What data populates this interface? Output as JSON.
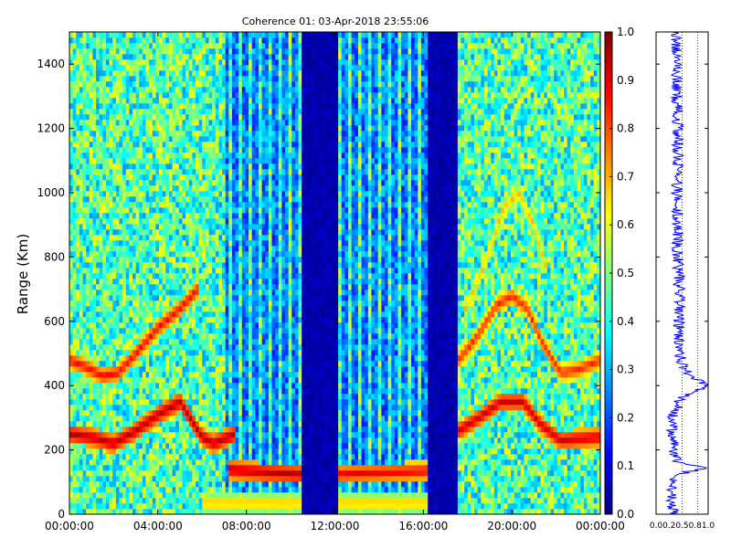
{
  "chart_data": [
    {
      "type": "heatmap",
      "title": "Coherence 01: 03-Apr-2018 23:55:06",
      "xlabel": "",
      "ylabel": "Range (Km)",
      "x_ticks": [
        "00:00:00",
        "04:00:00",
        "08:00:00",
        "12:00:00",
        "16:00:00",
        "20:00:00",
        "00:00:00"
      ],
      "x_range_hours": [
        0,
        24
      ],
      "y_ticks": [
        0,
        200,
        400,
        600,
        800,
        1000,
        1200,
        1400
      ],
      "ylim": [
        0,
        1500
      ],
      "colormap": "jet",
      "clim": [
        0,
        1
      ],
      "colorbar_ticks": [
        "0.0",
        "0.1",
        "0.2",
        "0.3",
        "0.4",
        "0.5",
        "0.6",
        "0.7",
        "0.8",
        "0.9",
        "1.0"
      ],
      "background_level": 0.45,
      "no_data_periods_hours": [
        [
          10.5,
          12.1
        ],
        [
          16.2,
          17.6
        ]
      ],
      "sparse_periods_hours": [
        [
          7.0,
          10.5
        ],
        [
          12.1,
          16.2
        ]
      ],
      "features": [
        {
          "hours": [
            0,
            1,
            2,
            3,
            4,
            5,
            6,
            6.5,
            7.5
          ],
          "range_km": [
            250,
            240,
            220,
            260,
            310,
            350,
            240,
            220,
            250
          ],
          "level": 0.95
        },
        {
          "hours": [
            0,
            0.7,
            1.5,
            2.2,
            3,
            4,
            5,
            5.8
          ],
          "range_km": [
            480,
            460,
            430,
            440,
            500,
            580,
            640,
            700
          ],
          "level": 0.88
        },
        {
          "hours": [
            7.2,
            8,
            9,
            10.5
          ],
          "range_km": [
            140,
            135,
            130,
            125
          ],
          "level": 0.95
        },
        {
          "hours": [
            12.1,
            13,
            14.5,
            16.2
          ],
          "range_km": [
            125,
            128,
            130,
            135
          ],
          "level": 0.9
        },
        {
          "hours": [
            6,
            10.5
          ],
          "range_km": [
            35,
            35
          ],
          "level": 0.72
        },
        {
          "hours": [
            12.1,
            16.2
          ],
          "range_km": [
            35,
            35
          ],
          "level": 0.72
        },
        {
          "hours": [
            17.6,
            18.5,
            19.5,
            20.5,
            21.3,
            22.2,
            23,
            24
          ],
          "range_km": [
            260,
            300,
            350,
            350,
            280,
            230,
            235,
            240
          ],
          "level": 0.93
        },
        {
          "hours": [
            17.6,
            18.5,
            19.3,
            20,
            20.7,
            21.4,
            22.2,
            23,
            24
          ],
          "range_km": [
            480,
            560,
            650,
            680,
            640,
            530,
            440,
            450,
            480
          ],
          "level": 0.85
        },
        {
          "hours": [
            17.8,
            18.8,
            19.6,
            20.3,
            21,
            21.6
          ],
          "range_km": [
            620,
            780,
            950,
            1000,
            900,
            760
          ],
          "level": 0.7
        }
      ]
    },
    {
      "type": "line",
      "title": "",
      "x_ticks": [
        "0.0",
        "0.2",
        "0.5",
        "0.8",
        "1.0"
      ],
      "xlim": [
        0,
        1
      ],
      "ylim": [
        0,
        1500
      ],
      "color": "#0000ff",
      "mean_profile": {
        "range_km": [
          0,
          60,
          110,
          130,
          145,
          160,
          200,
          240,
          280,
          300,
          320,
          360,
          400,
          450,
          500,
          560,
          640,
          720,
          800,
          880,
          960,
          1040,
          1120,
          1200,
          1280,
          1360,
          1440,
          1500
        ],
        "value": [
          0.33,
          0.28,
          0.3,
          0.55,
          1.0,
          0.4,
          0.35,
          0.33,
          0.3,
          0.28,
          0.38,
          0.45,
          0.98,
          0.52,
          0.45,
          0.45,
          0.44,
          0.44,
          0.42,
          0.42,
          0.4,
          0.4,
          0.42,
          0.42,
          0.4,
          0.4,
          0.4,
          0.4
        ]
      }
    }
  ]
}
